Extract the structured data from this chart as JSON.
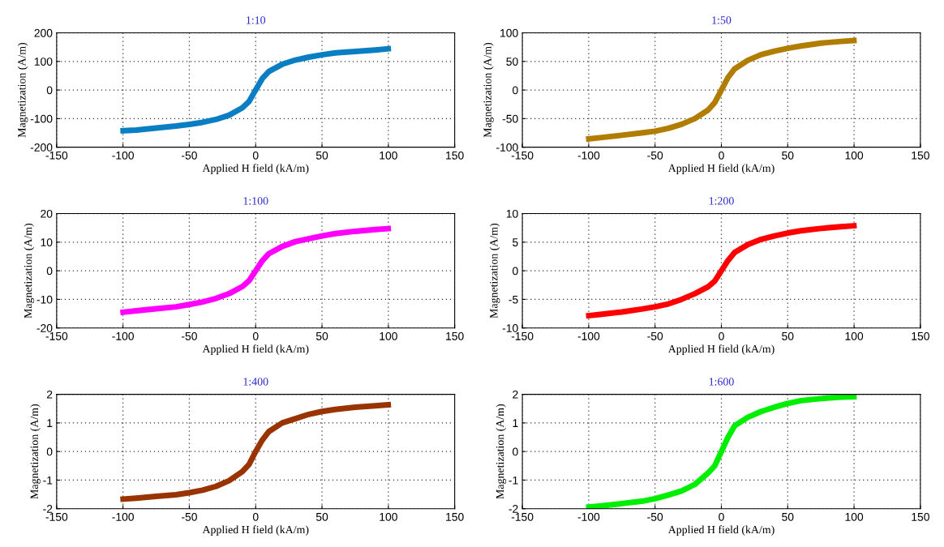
{
  "chart_data": [
    {
      "type": "line",
      "title": "1:10",
      "xlabel": "Applied H field (kA/m)",
      "ylabel": "Magnetization (A/m)",
      "x": [
        -102,
        -90,
        -75,
        -60,
        -50,
        -40,
        -30,
        -20,
        -10,
        -5,
        0,
        5,
        10,
        20,
        30,
        40,
        50,
        60,
        75,
        90,
        102
      ],
      "xlim": [
        -150,
        150
      ],
      "xticks": [
        -150,
        -100,
        -50,
        0,
        50,
        100,
        150
      ],
      "ylim": [
        -200,
        200
      ],
      "yticks": [
        -200,
        -100,
        0,
        100,
        200
      ],
      "grid": true,
      "series": [
        {
          "color": "#0a7ec2",
          "values": [
            -143,
            -140,
            -133,
            -126,
            -120,
            -113,
            -103,
            -88,
            -62,
            -40,
            0,
            40,
            65,
            90,
            105,
            115,
            123,
            130,
            135,
            140,
            145
          ]
        }
      ]
    },
    {
      "type": "line",
      "title": "1:50",
      "xlabel": "Applied H field (kA/m)",
      "ylabel": "Magnetization (A/m)",
      "x": [
        -102,
        -90,
        -75,
        -60,
        -50,
        -40,
        -30,
        -20,
        -10,
        -5,
        0,
        5,
        10,
        20,
        30,
        40,
        50,
        60,
        75,
        90,
        102
      ],
      "xlim": [
        -150,
        150
      ],
      "xticks": [
        -150,
        -100,
        -50,
        0,
        50,
        100,
        150
      ],
      "ylim": [
        -100,
        100
      ],
      "yticks": [
        -100,
        -50,
        0,
        50,
        100
      ],
      "grid": true,
      "series": [
        {
          "color": "#b07d00",
          "values": [
            -86,
            -83,
            -79,
            -75,
            -72,
            -67,
            -60,
            -50,
            -35,
            -22,
            0,
            22,
            37,
            52,
            62,
            68,
            73,
            77,
            82,
            85,
            87
          ]
        }
      ]
    },
    {
      "type": "line",
      "title": "1:100",
      "xlabel": "Applied H field (kA/m)",
      "ylabel": "Magnetization (A/m)",
      "x": [
        -102,
        -90,
        -75,
        -60,
        -50,
        -40,
        -30,
        -20,
        -10,
        -5,
        0,
        5,
        10,
        20,
        30,
        40,
        50,
        60,
        75,
        90,
        102
      ],
      "xlim": [
        -150,
        150
      ],
      "xticks": [
        -150,
        -100,
        -50,
        0,
        50,
        100,
        150
      ],
      "ylim": [
        -20,
        20
      ],
      "yticks": [
        -20,
        -10,
        0,
        10,
        20
      ],
      "grid": true,
      "series": [
        {
          "color": "#ff00ff",
          "values": [
            -14.6,
            -14.0,
            -13.3,
            -12.6,
            -11.8,
            -10.9,
            -9.7,
            -8.0,
            -5.5,
            -3.5,
            0,
            3.5,
            6,
            8.5,
            10.2,
            11.2,
            12.2,
            13,
            13.8,
            14.4,
            14.8
          ]
        }
      ]
    },
    {
      "type": "line",
      "title": "1:200",
      "xlabel": "Applied H field (kA/m)",
      "ylabel": "Magnetization (A/m)",
      "x": [
        -102,
        -90,
        -75,
        -60,
        -50,
        -40,
        -30,
        -20,
        -10,
        -5,
        0,
        5,
        10,
        20,
        30,
        40,
        50,
        60,
        75,
        90,
        102
      ],
      "xlim": [
        -150,
        150
      ],
      "xticks": [
        -150,
        -100,
        -50,
        0,
        50,
        100,
        150
      ],
      "ylim": [
        -10,
        10
      ],
      "yticks": [
        -10,
        -5,
        0,
        5,
        10
      ],
      "grid": true,
      "series": [
        {
          "color": "#ff0000",
          "values": [
            -7.9,
            -7.6,
            -7.2,
            -6.7,
            -6.3,
            -5.8,
            -5.0,
            -4.0,
            -2.8,
            -1.8,
            0,
            1.8,
            3.2,
            4.6,
            5.5,
            6.1,
            6.6,
            7.0,
            7.4,
            7.7,
            7.9
          ]
        }
      ]
    },
    {
      "type": "line",
      "title": "1:400",
      "xlabel": "Applied H field (kA/m)",
      "ylabel": "Magnetization (A/m)",
      "x": [
        -102,
        -90,
        -75,
        -60,
        -50,
        -40,
        -30,
        -20,
        -10,
        -5,
        0,
        5,
        10,
        20,
        30,
        40,
        50,
        60,
        75,
        90,
        102
      ],
      "xlim": [
        -150,
        150
      ],
      "xticks": [
        -150,
        -100,
        -50,
        0,
        50,
        100,
        150
      ],
      "ylim": [
        -2,
        2
      ],
      "yticks": [
        -2,
        -1,
        0,
        1,
        2
      ],
      "grid": true,
      "series": [
        {
          "color": "#993300",
          "values": [
            -1.67,
            -1.63,
            -1.57,
            -1.51,
            -1.44,
            -1.35,
            -1.22,
            -1.02,
            -0.7,
            -0.45,
            0,
            0.4,
            0.7,
            1.0,
            1.15,
            1.3,
            1.4,
            1.47,
            1.55,
            1.6,
            1.64
          ]
        }
      ]
    },
    {
      "type": "line",
      "title": "1:600",
      "xlabel": "Applied H field (kA/m)",
      "ylabel": "Magnetization (A/m)",
      "x": [
        -102,
        -90,
        -75,
        -60,
        -50,
        -40,
        -30,
        -20,
        -10,
        -5,
        0,
        5,
        10,
        20,
        30,
        40,
        50,
        60,
        75,
        90,
        102
      ],
      "xlim": [
        -150,
        150
      ],
      "xticks": [
        -150,
        -100,
        -50,
        0,
        50,
        100,
        150
      ],
      "ylim": [
        -2,
        2
      ],
      "yticks": [
        -2,
        -1,
        0,
        1,
        2
      ],
      "grid": true,
      "series": [
        {
          "color": "#00ee00",
          "values": [
            -1.95,
            -1.9,
            -1.82,
            -1.74,
            -1.65,
            -1.52,
            -1.38,
            -1.15,
            -0.75,
            -0.5,
            0,
            0.5,
            0.9,
            1.2,
            1.4,
            1.55,
            1.68,
            1.78,
            1.85,
            1.9,
            1.92
          ]
        }
      ]
    }
  ]
}
